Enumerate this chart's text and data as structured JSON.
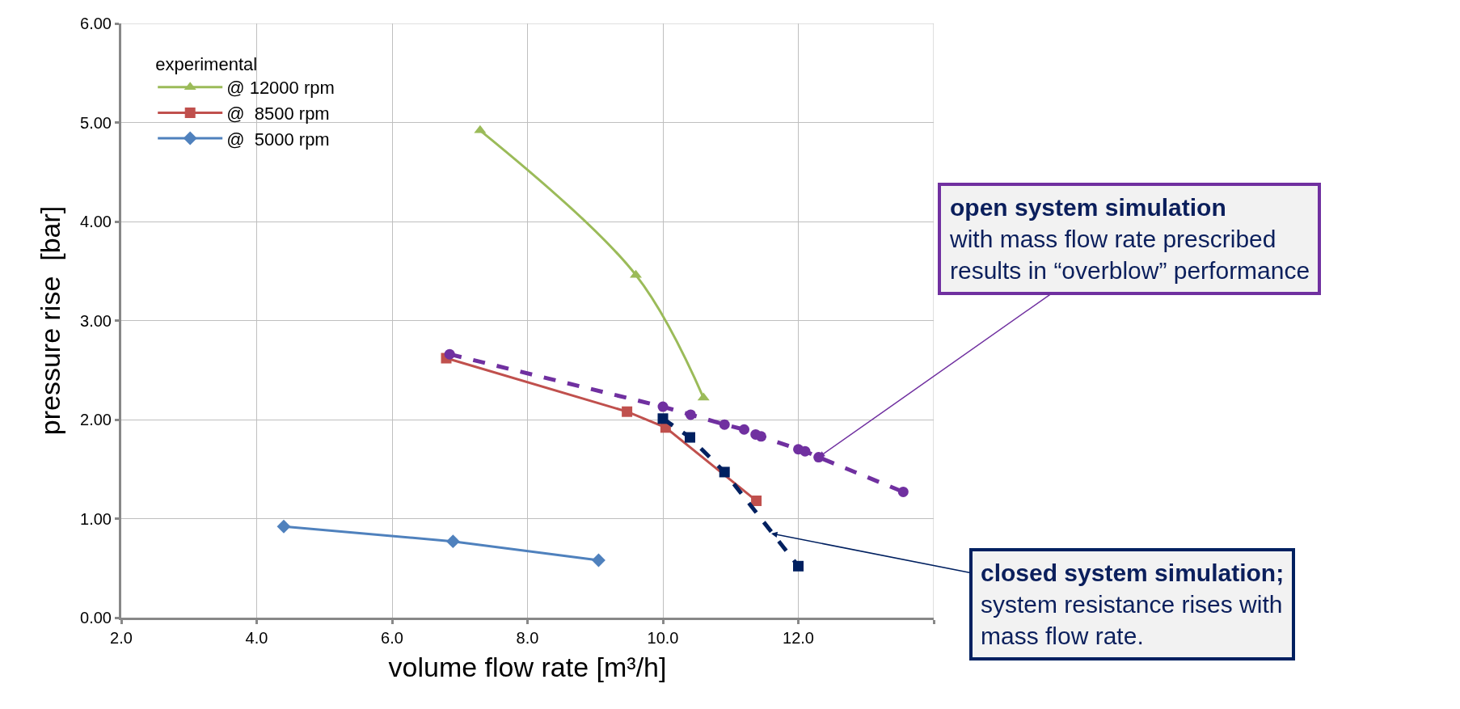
{
  "chart_data": {
    "type": "line",
    "xlabel": "volume flow rate [m³/h]",
    "ylabel": "pressure rise  [bar]",
    "legend_title": "experimental",
    "legend": "top left",
    "grid": true,
    "xlim": [
      2,
      14
    ],
    "xticks": [
      {
        "value": 2,
        "label": "2.0"
      },
      {
        "value": 4,
        "label": "4.0"
      },
      {
        "value": 6,
        "label": "6.0"
      },
      {
        "value": 8,
        "label": "8.0"
      },
      {
        "value": 10,
        "label": "10.0"
      },
      {
        "value": 12,
        "label": "12.0"
      },
      {
        "value": 14,
        "label": null
      }
    ],
    "ylim": [
      0,
      6
    ],
    "yticks": [
      {
        "value": 0,
        "label": "0.00"
      },
      {
        "value": 1,
        "label": "1.00"
      },
      {
        "value": 2,
        "label": "2.00"
      },
      {
        "value": 3,
        "label": "3.00"
      },
      {
        "value": 4,
        "label": "4.00"
      },
      {
        "value": 5,
        "label": "5.00"
      },
      {
        "value": 6,
        "label": "6.00"
      }
    ],
    "series": [
      {
        "name": "@ 12000 rpm",
        "color": "#9bbb59",
        "marker": "triangle",
        "line_style": "solid",
        "x": [
          7.3,
          9.6,
          10.6
        ],
        "values": [
          4.92,
          3.46,
          2.22
        ]
      },
      {
        "name": "@  8500 rpm",
        "color": "#c0504d",
        "marker": "square",
        "line_style": "solid",
        "x": [
          6.8,
          9.47,
          10.04,
          11.38
        ],
        "values": [
          2.62,
          2.08,
          1.92,
          1.18
        ]
      },
      {
        "name": "@  5000 rpm",
        "color": "#4f81bd",
        "marker": "diamond",
        "line_style": "solid",
        "x": [
          4.4,
          6.9,
          9.05
        ],
        "values": [
          0.92,
          0.77,
          0.58
        ]
      },
      {
        "color": "#7030a0",
        "marker": "circle",
        "line_style": "dashed",
        "x": [
          6.85,
          10.0,
          10.41,
          10.91,
          11.2,
          11.37,
          11.45,
          12.0,
          12.1,
          12.3,
          13.55
        ],
        "values": [
          2.66,
          2.13,
          2.05,
          1.95,
          1.9,
          1.85,
          1.83,
          1.7,
          1.68,
          1.62,
          1.27
        ]
      },
      {
        "color": "#002060",
        "marker": "square",
        "line_style": "dashed",
        "x": [
          10.0,
          10.4,
          10.91,
          12.0
        ],
        "values": [
          2.01,
          1.82,
          1.47,
          0.52
        ]
      }
    ],
    "annotations": [
      {
        "text": "open system simulation\nwith mass flow rate prescribed\nresults in “overblow” performance",
        "x": 12.3,
        "y": 1.62
      },
      {
        "text": "closed system simulation;\nsystem resistance rises with\nmass flow rate.",
        "x": 11.6,
        "y": 0.85
      }
    ]
  }
}
